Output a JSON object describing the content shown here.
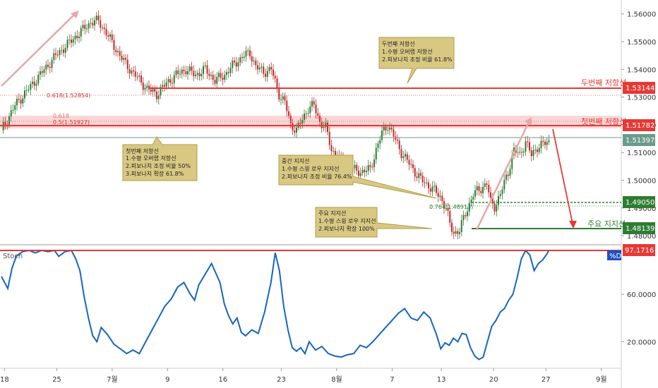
{
  "chart_data": [
    {
      "type": "candlestick",
      "ylim": [
        1.4785,
        1.5645
      ],
      "y_ticks": [
        "1.56000",
        "1.55000",
        "1.54000",
        "1.53000",
        "1.52000",
        "1.51000",
        "1.50000",
        "1.49000",
        "1.48000"
      ],
      "x_ticks": [
        "18",
        "25",
        "7월",
        "9",
        "16",
        "23",
        "8월",
        "7",
        "13",
        "20",
        "27",
        "9월"
      ],
      "price_points": [
        [
          0,
          1.518
        ],
        [
          7,
          1.527
        ],
        [
          14,
          1.533
        ],
        [
          21,
          1.539
        ],
        [
          28,
          1.545
        ],
        [
          34,
          1.549
        ],
        [
          40,
          1.553
        ],
        [
          46,
          1.557
        ],
        [
          50,
          1.5575
        ],
        [
          55,
          1.552
        ],
        [
          60,
          1.546
        ],
        [
          65,
          1.541
        ],
        [
          70,
          1.537
        ],
        [
          75,
          1.533
        ],
        [
          80,
          1.531
        ],
        [
          85,
          1.535
        ],
        [
          90,
          1.538
        ],
        [
          95,
          1.54
        ],
        [
          100,
          1.538
        ],
        [
          105,
          1.54
        ],
        [
          110,
          1.536
        ],
        [
          115,
          1.538
        ],
        [
          120,
          1.542
        ],
        [
          125,
          1.545
        ],
        [
          128,
          1.546
        ],
        [
          131,
          1.541
        ],
        [
          135,
          1.539
        ],
        [
          139,
          1.54
        ],
        [
          143,
          1.531
        ],
        [
          146,
          1.528
        ],
        [
          149,
          1.52
        ],
        [
          152,
          1.518
        ],
        [
          155,
          1.522
        ],
        [
          158,
          1.526
        ],
        [
          161,
          1.527
        ],
        [
          164,
          1.521
        ],
        [
          167,
          1.519
        ],
        [
          170,
          1.511
        ],
        [
          175,
          1.507
        ],
        [
          180,
          1.504
        ],
        [
          185,
          1.503
        ],
        [
          190,
          1.504
        ],
        [
          193,
          1.511
        ],
        [
          196,
          1.517
        ],
        [
          199,
          1.52
        ],
        [
          202,
          1.516
        ],
        [
          206,
          1.51
        ],
        [
          210,
          1.506
        ],
        [
          214,
          1.502
        ],
        [
          218,
          1.499
        ],
        [
          222,
          1.497
        ],
        [
          226,
          1.494
        ],
        [
          229,
          1.49
        ],
        [
          231,
          1.484
        ],
        [
          233,
          1.481
        ],
        [
          236,
          1.482
        ],
        [
          239,
          1.488
        ],
        [
          243,
          1.495
        ],
        [
          247,
          1.497
        ],
        [
          250,
          1.499
        ],
        [
          252,
          1.492
        ],
        [
          254,
          1.4905
        ],
        [
          257,
          1.495
        ],
        [
          261,
          1.503
        ],
        [
          264,
          1.511
        ],
        [
          267,
          1.509
        ],
        [
          270,
          1.514
        ],
        [
          273,
          1.509
        ],
        [
          276,
          1.512
        ],
        [
          279,
          1.513
        ],
        [
          282,
          1.5139
        ]
      ],
      "x_ticks_at": [
        1,
        18,
        36,
        54,
        72,
        91,
        109,
        127,
        143,
        160,
        177,
        195
      ]
    },
    {
      "type": "line",
      "name": "Stoch",
      "ylim": [
        0,
        100
      ],
      "y_ticks": [
        "60.0000",
        "20.0000"
      ],
      "y_tick_values": [
        60,
        20
      ],
      "current_value": "97.1716",
      "series_label": "%D",
      "points": [
        [
          0,
          75
        ],
        [
          3,
          65
        ],
        [
          5,
          82
        ],
        [
          7,
          92
        ],
        [
          10,
          96
        ],
        [
          13,
          97
        ],
        [
          16,
          95
        ],
        [
          19,
          97
        ],
        [
          22,
          96
        ],
        [
          25,
          97
        ],
        [
          27,
          92
        ],
        [
          30,
          96
        ],
        [
          33,
          97
        ],
        [
          35,
          90
        ],
        [
          37,
          80
        ],
        [
          39,
          58
        ],
        [
          41,
          40
        ],
        [
          43,
          25
        ],
        [
          45,
          20
        ],
        [
          47,
          32
        ],
        [
          50,
          26
        ],
        [
          53,
          18
        ],
        [
          56,
          14
        ],
        [
          59,
          10
        ],
        [
          62,
          13
        ],
        [
          65,
          10
        ],
        [
          68,
          20
        ],
        [
          71,
          30
        ],
        [
          74,
          40
        ],
        [
          77,
          50
        ],
        [
          80,
          56
        ],
        [
          83,
          66
        ],
        [
          86,
          70
        ],
        [
          89,
          60
        ],
        [
          91,
          55
        ],
        [
          93,
          68
        ],
        [
          95,
          74
        ],
        [
          97,
          80
        ],
        [
          99,
          86
        ],
        [
          101,
          78
        ],
        [
          103,
          70
        ],
        [
          105,
          52
        ],
        [
          107,
          42
        ],
        [
          109,
          35
        ],
        [
          111,
          40
        ],
        [
          113,
          28
        ],
        [
          115,
          25
        ],
        [
          118,
          30
        ],
        [
          121,
          27
        ],
        [
          124,
          45
        ],
        [
          127,
          70
        ],
        [
          129,
          95
        ],
        [
          131,
          80
        ],
        [
          133,
          50
        ],
        [
          135,
          30
        ],
        [
          137,
          15
        ],
        [
          139,
          12
        ],
        [
          141,
          15
        ],
        [
          143,
          10
        ],
        [
          145,
          20
        ],
        [
          148,
          13
        ],
        [
          151,
          16
        ],
        [
          154,
          10
        ],
        [
          157,
          8
        ],
        [
          160,
          7
        ],
        [
          163,
          9
        ],
        [
          166,
          10
        ],
        [
          169,
          17
        ],
        [
          172,
          15
        ],
        [
          175,
          20
        ],
        [
          178,
          26
        ],
        [
          181,
          32
        ],
        [
          184,
          38
        ],
        [
          187,
          44
        ],
        [
          190,
          48
        ],
        [
          193,
          40
        ],
        [
          196,
          38
        ],
        [
          199,
          45
        ],
        [
          202,
          40
        ],
        [
          205,
          26
        ],
        [
          207,
          14
        ],
        [
          209,
          19
        ],
        [
          211,
          17
        ],
        [
          213,
          23
        ],
        [
          215,
          20
        ],
        [
          217,
          27
        ],
        [
          219,
          26
        ],
        [
          221,
          15
        ],
        [
          223,
          8
        ],
        [
          225,
          5
        ],
        [
          227,
          7
        ],
        [
          229,
          20
        ],
        [
          231,
          33
        ],
        [
          233,
          38
        ],
        [
          235,
          45
        ],
        [
          237,
          48
        ],
        [
          239,
          55
        ],
        [
          241,
          60
        ],
        [
          243,
          74
        ],
        [
          245,
          90
        ],
        [
          247,
          97
        ],
        [
          249,
          93
        ],
        [
          251,
          80
        ],
        [
          253,
          86
        ],
        [
          255,
          89
        ],
        [
          257,
          94
        ],
        [
          258,
          97.17
        ]
      ]
    }
  ],
  "levels": {
    "resistance2": {
      "value": "1.53144",
      "label": "두번째 저항선",
      "color": "#e53935"
    },
    "resistance1": {
      "value": "1.51782",
      "label": "첫번째 저항선",
      "color": "#e53935"
    },
    "current": {
      "value": "1.51397",
      "color": "#6b9b8a"
    },
    "intermediate": {
      "value": "1.49050",
      "color": "#2e7d32"
    },
    "major": {
      "value": "1.48139",
      "label": "주요 지지선",
      "color": "#2e7d32"
    }
  },
  "fib_labels": {
    "r2": "0.618(1.52854)",
    "r1_a": "0.618",
    "r1_b": "0.5(1.51927)",
    "mid": "0.764(1.48913)"
  },
  "notes": {
    "r2": [
      "두번째 저항선",
      "1.수평 오버랩 저항선",
      "2.피보나치 조정 비율 61.8%"
    ],
    "r1": [
      "첫번째 저항선",
      "1.수평 오버랩 저항선",
      "2.피보나치 조정 비율 50%",
      "3.피보나치 확장 61.8%"
    ],
    "mid": [
      "중간 지지선",
      "1.수평 스윙 로우 지지선",
      "2.피보나치 조정 비율 76.4%"
    ],
    "major": [
      "주요 지지선",
      "1.수평 스윙 로우 지지선",
      "2.피보나치 확장 100%"
    ]
  },
  "colors": {
    "price_up": "#2e7d32",
    "price_down": "#c62828",
    "stoch_line": "#1565c0",
    "stoch_badge": "#1e4fc2",
    "note_bg": "#d9c882",
    "note_border": "#b19d4a",
    "resistance_zone": "#f7c6c6",
    "trend_arrow": "#e8a6a6"
  }
}
